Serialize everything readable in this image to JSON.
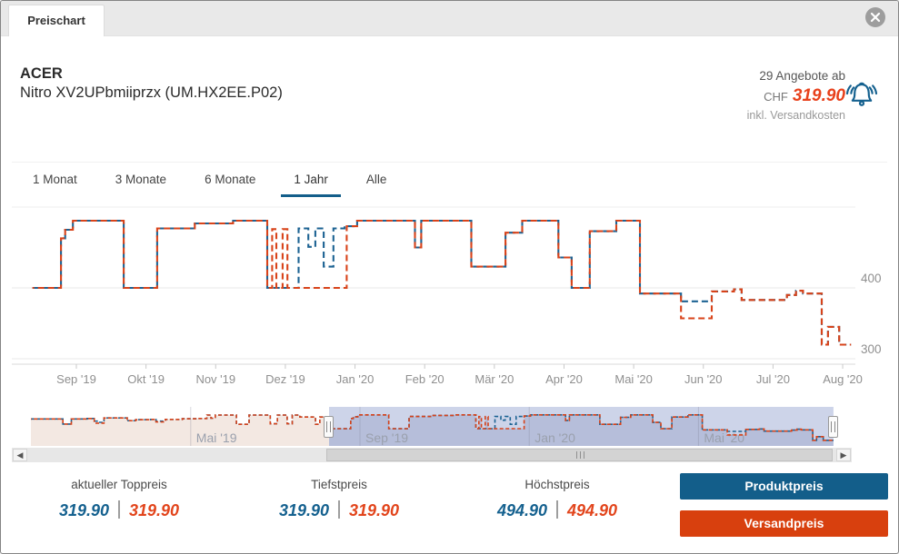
{
  "window": {
    "tab_label": "Preischart"
  },
  "header": {
    "brand": "ACER",
    "product": "Nitro XV2UPbmiiprzx (UM.HX2EE.P02)",
    "offers_count": "29 Angebote ab",
    "currency": "CHF",
    "best_price": "319.90",
    "price_note": "inkl. Versandkosten"
  },
  "range_tabs": [
    {
      "label": "1 Monat",
      "active": false
    },
    {
      "label": "3 Monate",
      "active": false
    },
    {
      "label": "6 Monate",
      "active": false
    },
    {
      "label": "1 Jahr",
      "active": true
    },
    {
      "label": "Alle",
      "active": false
    }
  ],
  "chart_data": {
    "type": "line",
    "subtype": "dashed step lines, price history",
    "x_unit": "months since Aug 1 2019 (1 = Sep '19, 12 = Aug '20)",
    "x_tick_labels": [
      "Sep '19",
      "Okt '19",
      "Nov '19",
      "Dez '19",
      "Jan '20",
      "Feb '20",
      "Mär '20",
      "Apr '20",
      "Mai '20",
      "Jun '20",
      "Jul '20",
      "Aug '20"
    ],
    "x_tick_values": [
      1,
      2,
      3,
      4,
      5,
      6,
      7,
      8,
      9,
      10,
      11,
      12
    ],
    "y_tick_labels": [
      "400",
      "300"
    ],
    "y_tick_values": [
      400,
      300
    ],
    "ylim": [
      285,
      515
    ],
    "grid": "horizontal",
    "legend_position": "bottom-right buttons",
    "end_m": 12.12,
    "series": [
      {
        "name": "Produktpreis",
        "color": "#1d6393",
        "style": "dashed step",
        "points": [
          [
            0.37,
            400
          ],
          [
            0.78,
            470
          ],
          [
            0.84,
            482
          ],
          [
            0.95,
            494.9
          ],
          [
            1.68,
            400
          ],
          [
            2.16,
            484
          ],
          [
            2.7,
            491
          ],
          [
            3.25,
            494.9
          ],
          [
            3.74,
            400
          ],
          [
            4.19,
            484
          ],
          [
            4.33,
            458
          ],
          [
            4.43,
            484
          ],
          [
            4.55,
            430
          ],
          [
            4.69,
            484
          ],
          [
            4.85,
            487
          ],
          [
            5.03,
            494.9
          ],
          [
            5.86,
            457
          ],
          [
            5.95,
            494.9
          ],
          [
            6.67,
            430
          ],
          [
            7.16,
            478
          ],
          [
            7.4,
            494.9
          ],
          [
            7.92,
            443
          ],
          [
            8.11,
            400
          ],
          [
            8.37,
            480
          ],
          [
            8.75,
            494.9
          ],
          [
            9.09,
            392
          ],
          [
            9.68,
            381
          ],
          [
            10.12,
            395
          ],
          [
            10.44,
            398
          ],
          [
            10.55,
            383
          ],
          [
            11.2,
            390
          ],
          [
            11.33,
            396
          ],
          [
            11.43,
            392
          ],
          [
            11.7,
            319.9
          ],
          [
            11.79,
            345
          ],
          [
            11.95,
            319.9
          ]
        ]
      },
      {
        "name": "Versandpreis",
        "color": "#d8431a",
        "style": "dashed step",
        "points": [
          [
            0.37,
            400
          ],
          [
            0.78,
            470
          ],
          [
            0.84,
            482
          ],
          [
            0.95,
            494.9
          ],
          [
            1.68,
            400
          ],
          [
            2.16,
            484
          ],
          [
            2.7,
            491
          ],
          [
            3.25,
            494.9
          ],
          [
            3.74,
            400
          ],
          [
            3.81,
            483
          ],
          [
            3.87,
            400
          ],
          [
            3.96,
            483
          ],
          [
            4.03,
            400
          ],
          [
            4.88,
            487
          ],
          [
            5.03,
            494.9
          ],
          [
            5.86,
            457
          ],
          [
            5.95,
            494.9
          ],
          [
            6.67,
            430
          ],
          [
            7.16,
            478
          ],
          [
            7.4,
            494.9
          ],
          [
            7.92,
            443
          ],
          [
            8.11,
            400
          ],
          [
            8.37,
            480
          ],
          [
            8.75,
            494.9
          ],
          [
            9.09,
            392
          ],
          [
            9.68,
            357
          ],
          [
            10.12,
            395
          ],
          [
            10.44,
            398
          ],
          [
            10.55,
            383
          ],
          [
            11.2,
            390
          ],
          [
            11.33,
            396
          ],
          [
            11.43,
            392
          ],
          [
            11.7,
            319.9
          ],
          [
            11.79,
            345
          ],
          [
            11.95,
            319.9
          ]
        ]
      }
    ],
    "navigator": {
      "x_tick_labels": [
        "Mai '19",
        "Sep '19",
        "Jan '20",
        "Mai '20"
      ],
      "x_tick_values": [
        -3,
        1,
        5,
        9
      ],
      "xlim": [
        -6.78,
        12.19
      ],
      "selected_range": [
        0.27,
        12.19
      ],
      "note": "navigator shows the same two series over a longer window; left (unselected) part below",
      "left_series": [
        {
          "name": "Produktpreis",
          "points": [
            [
              -6.78,
              467
            ],
            [
              -6.15,
              467
            ],
            [
              -6.02,
              432
            ],
            [
              -5.82,
              467
            ],
            [
              -5.45,
              470
            ],
            [
              -5.28,
              452
            ],
            [
              -5.18,
              444
            ],
            [
              -5.05,
              474
            ],
            [
              -4.5,
              455
            ],
            [
              -4.3,
              462
            ],
            [
              -3.95,
              464
            ],
            [
              -3.82,
              452
            ],
            [
              -3.6,
              464
            ],
            [
              -3.2,
              468
            ],
            [
              -2.85,
              470
            ],
            [
              -2.62,
              494
            ],
            [
              -2.52,
              472
            ],
            [
              -2.42,
              494
            ],
            [
              -1.92,
              430
            ],
            [
              -1.62,
              494
            ],
            [
              -1.12,
              434
            ],
            [
              -0.95,
              494
            ],
            [
              -0.72,
              434
            ],
            [
              -0.6,
              494
            ],
            [
              -0.42,
              480
            ],
            [
              -0.05,
              430
            ],
            [
              0.05,
              480
            ],
            [
              0.2,
              400
            ]
          ]
        },
        {
          "name": "Versandpreis",
          "points": [
            [
              -6.78,
              467
            ],
            [
              -6.15,
              467
            ],
            [
              -6.02,
              432
            ],
            [
              -5.82,
              467
            ],
            [
              -5.45,
              470
            ],
            [
              -5.28,
              438
            ],
            [
              -5.05,
              474
            ],
            [
              -4.5,
              455
            ],
            [
              -4.3,
              462
            ],
            [
              -3.95,
              464
            ],
            [
              -3.82,
              446
            ],
            [
              -3.6,
              464
            ],
            [
              -3.2,
              468
            ],
            [
              -2.85,
              470
            ],
            [
              -2.62,
              494
            ],
            [
              -2.52,
              472
            ],
            [
              -2.42,
              494
            ],
            [
              -1.92,
              430
            ],
            [
              -1.62,
              494
            ],
            [
              -1.12,
              434
            ],
            [
              -0.95,
              494
            ],
            [
              -0.72,
              434
            ],
            [
              -0.6,
              494
            ],
            [
              -0.42,
              480
            ],
            [
              -0.05,
              430
            ],
            [
              0.05,
              480
            ],
            [
              0.2,
              400
            ]
          ]
        }
      ]
    },
    "key_values": {
      "aktueller_toppreis": [
        319.9,
        319.9
      ],
      "tiefstpreis": [
        319.9,
        319.9
      ],
      "hoechstpreis": [
        494.9,
        494.9
      ]
    }
  },
  "stats": [
    {
      "label": "aktueller Toppreis",
      "product_price": "319.90",
      "shipping_price": "319.90"
    },
    {
      "label": "Tiefstpreis",
      "product_price": "319.90",
      "shipping_price": "319.90"
    },
    {
      "label": "Höchstpreis",
      "product_price": "494.90",
      "shipping_price": "494.90"
    }
  ],
  "legend_buttons": [
    {
      "label": "Produktpreis",
      "color": "#135e8a"
    },
    {
      "label": "Versandpreis",
      "color": "#d8400e"
    }
  ],
  "colors": {
    "product_line": "#1d6393",
    "shipping_line": "#d8431a",
    "price_red": "#e8411c",
    "stat_blue": "#15618f",
    "nav_selected_bg": "#cdd4e9",
    "nav_left_fill": "#f3e8e2",
    "active_tab_underline": "#135e8a"
  }
}
